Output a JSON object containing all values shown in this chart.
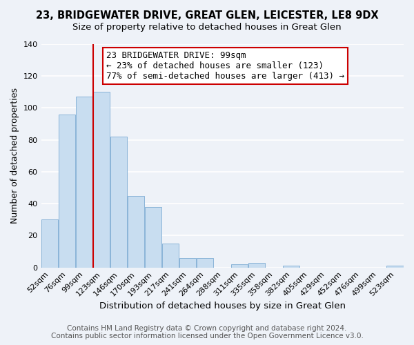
{
  "title": "23, BRIDGEWATER DRIVE, GREAT GLEN, LEICESTER, LE8 9DX",
  "subtitle": "Size of property relative to detached houses in Great Glen",
  "xlabel": "Distribution of detached houses by size in Great Glen",
  "ylabel": "Number of detached properties",
  "bar_color": "#c8ddf0",
  "bar_edge_color": "#8ab4d8",
  "marker_line_color": "#cc0000",
  "background_color": "#eef2f8",
  "grid_color": "#ffffff",
  "categories": [
    "52sqm",
    "76sqm",
    "99sqm",
    "123sqm",
    "146sqm",
    "170sqm",
    "193sqm",
    "217sqm",
    "241sqm",
    "264sqm",
    "288sqm",
    "311sqm",
    "335sqm",
    "358sqm",
    "382sqm",
    "405sqm",
    "429sqm",
    "452sqm",
    "476sqm",
    "499sqm",
    "523sqm"
  ],
  "values": [
    30,
    96,
    107,
    110,
    82,
    45,
    38,
    15,
    6,
    6,
    0,
    2,
    3,
    0,
    1,
    0,
    0,
    0,
    0,
    0,
    1
  ],
  "marker_index": 2,
  "annotation_title": "23 BRIDGEWATER DRIVE: 99sqm",
  "annotation_line1": "← 23% of detached houses are smaller (123)",
  "annotation_line2": "77% of semi-detached houses are larger (413) →",
  "footer_line1": "Contains HM Land Registry data © Crown copyright and database right 2024.",
  "footer_line2": "Contains public sector information licensed under the Open Government Licence v3.0.",
  "ylim": [
    0,
    140
  ],
  "yticks": [
    0,
    20,
    40,
    60,
    80,
    100,
    120,
    140
  ],
  "title_fontsize": 10.5,
  "subtitle_fontsize": 9.5,
  "xlabel_fontsize": 9.5,
  "ylabel_fontsize": 9,
  "tick_fontsize": 8,
  "footer_fontsize": 7.5,
  "annotation_fontsize": 9
}
